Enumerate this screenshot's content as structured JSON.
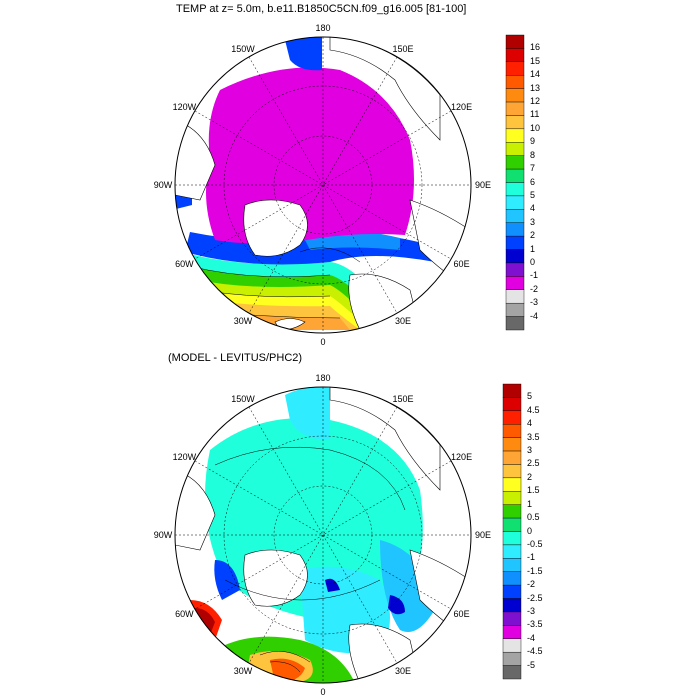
{
  "panel1": {
    "title": "TEMP at z=   5.0m, b.e11.B1850C5CN.f09_g16.005 [81-100]",
    "lon_labels": [
      "180",
      "150E",
      "120E",
      "90E",
      "60E",
      "30E",
      "0",
      "30W",
      "60W",
      "90W",
      "120W",
      "150W"
    ],
    "colorbar": {
      "levels": [
        "16",
        "15",
        "14",
        "13",
        "12",
        "11",
        "10",
        "9",
        "8",
        "7",
        "6",
        "5",
        "4",
        "3",
        "2",
        "1",
        "0",
        "-1",
        "-2",
        "-3",
        "-4"
      ],
      "colors": [
        "#b00000",
        "#dd0000",
        "#ff2000",
        "#ff5a00",
        "#ff8a10",
        "#ffa535",
        "#ffc43d",
        "#ffff20",
        "#c8f000",
        "#30d000",
        "#10e070",
        "#20ffdc",
        "#30ecff",
        "#20c4ff",
        "#1090ff",
        "#0040ff",
        "#0000d0",
        "#8010d0",
        "#e000e0",
        "#e4e4e4",
        "#a4a4a4",
        "#686868"
      ]
    }
  },
  "panel2": {
    "title": "(MODEL - LEVITUS/PHC2)",
    "lon_labels": [
      "180",
      "150E",
      "120E",
      "90E",
      "60E",
      "30E",
      "0",
      "30W",
      "60W",
      "90W",
      "120W",
      "150W"
    ],
    "colorbar": {
      "levels": [
        "5",
        "4.5",
        "4",
        "3.5",
        "3",
        "2.5",
        "2",
        "1.5",
        "1",
        "0.5",
        "0",
        "-0.5",
        "-1",
        "-1.5",
        "-2",
        "-2.5",
        "-3",
        "-3.5",
        "-4",
        "-4.5",
        "-5"
      ],
      "colors": [
        "#b00000",
        "#dd0000",
        "#ff2000",
        "#ff5a00",
        "#ff8a10",
        "#ffa535",
        "#ffc43d",
        "#ffff20",
        "#c8f000",
        "#30d000",
        "#10e070",
        "#20ffdc",
        "#30ecff",
        "#20c4ff",
        "#1090ff",
        "#0040ff",
        "#0000d0",
        "#8010d0",
        "#e000e0",
        "#e4e4e4",
        "#a4a4a4",
        "#686868"
      ]
    }
  }
}
